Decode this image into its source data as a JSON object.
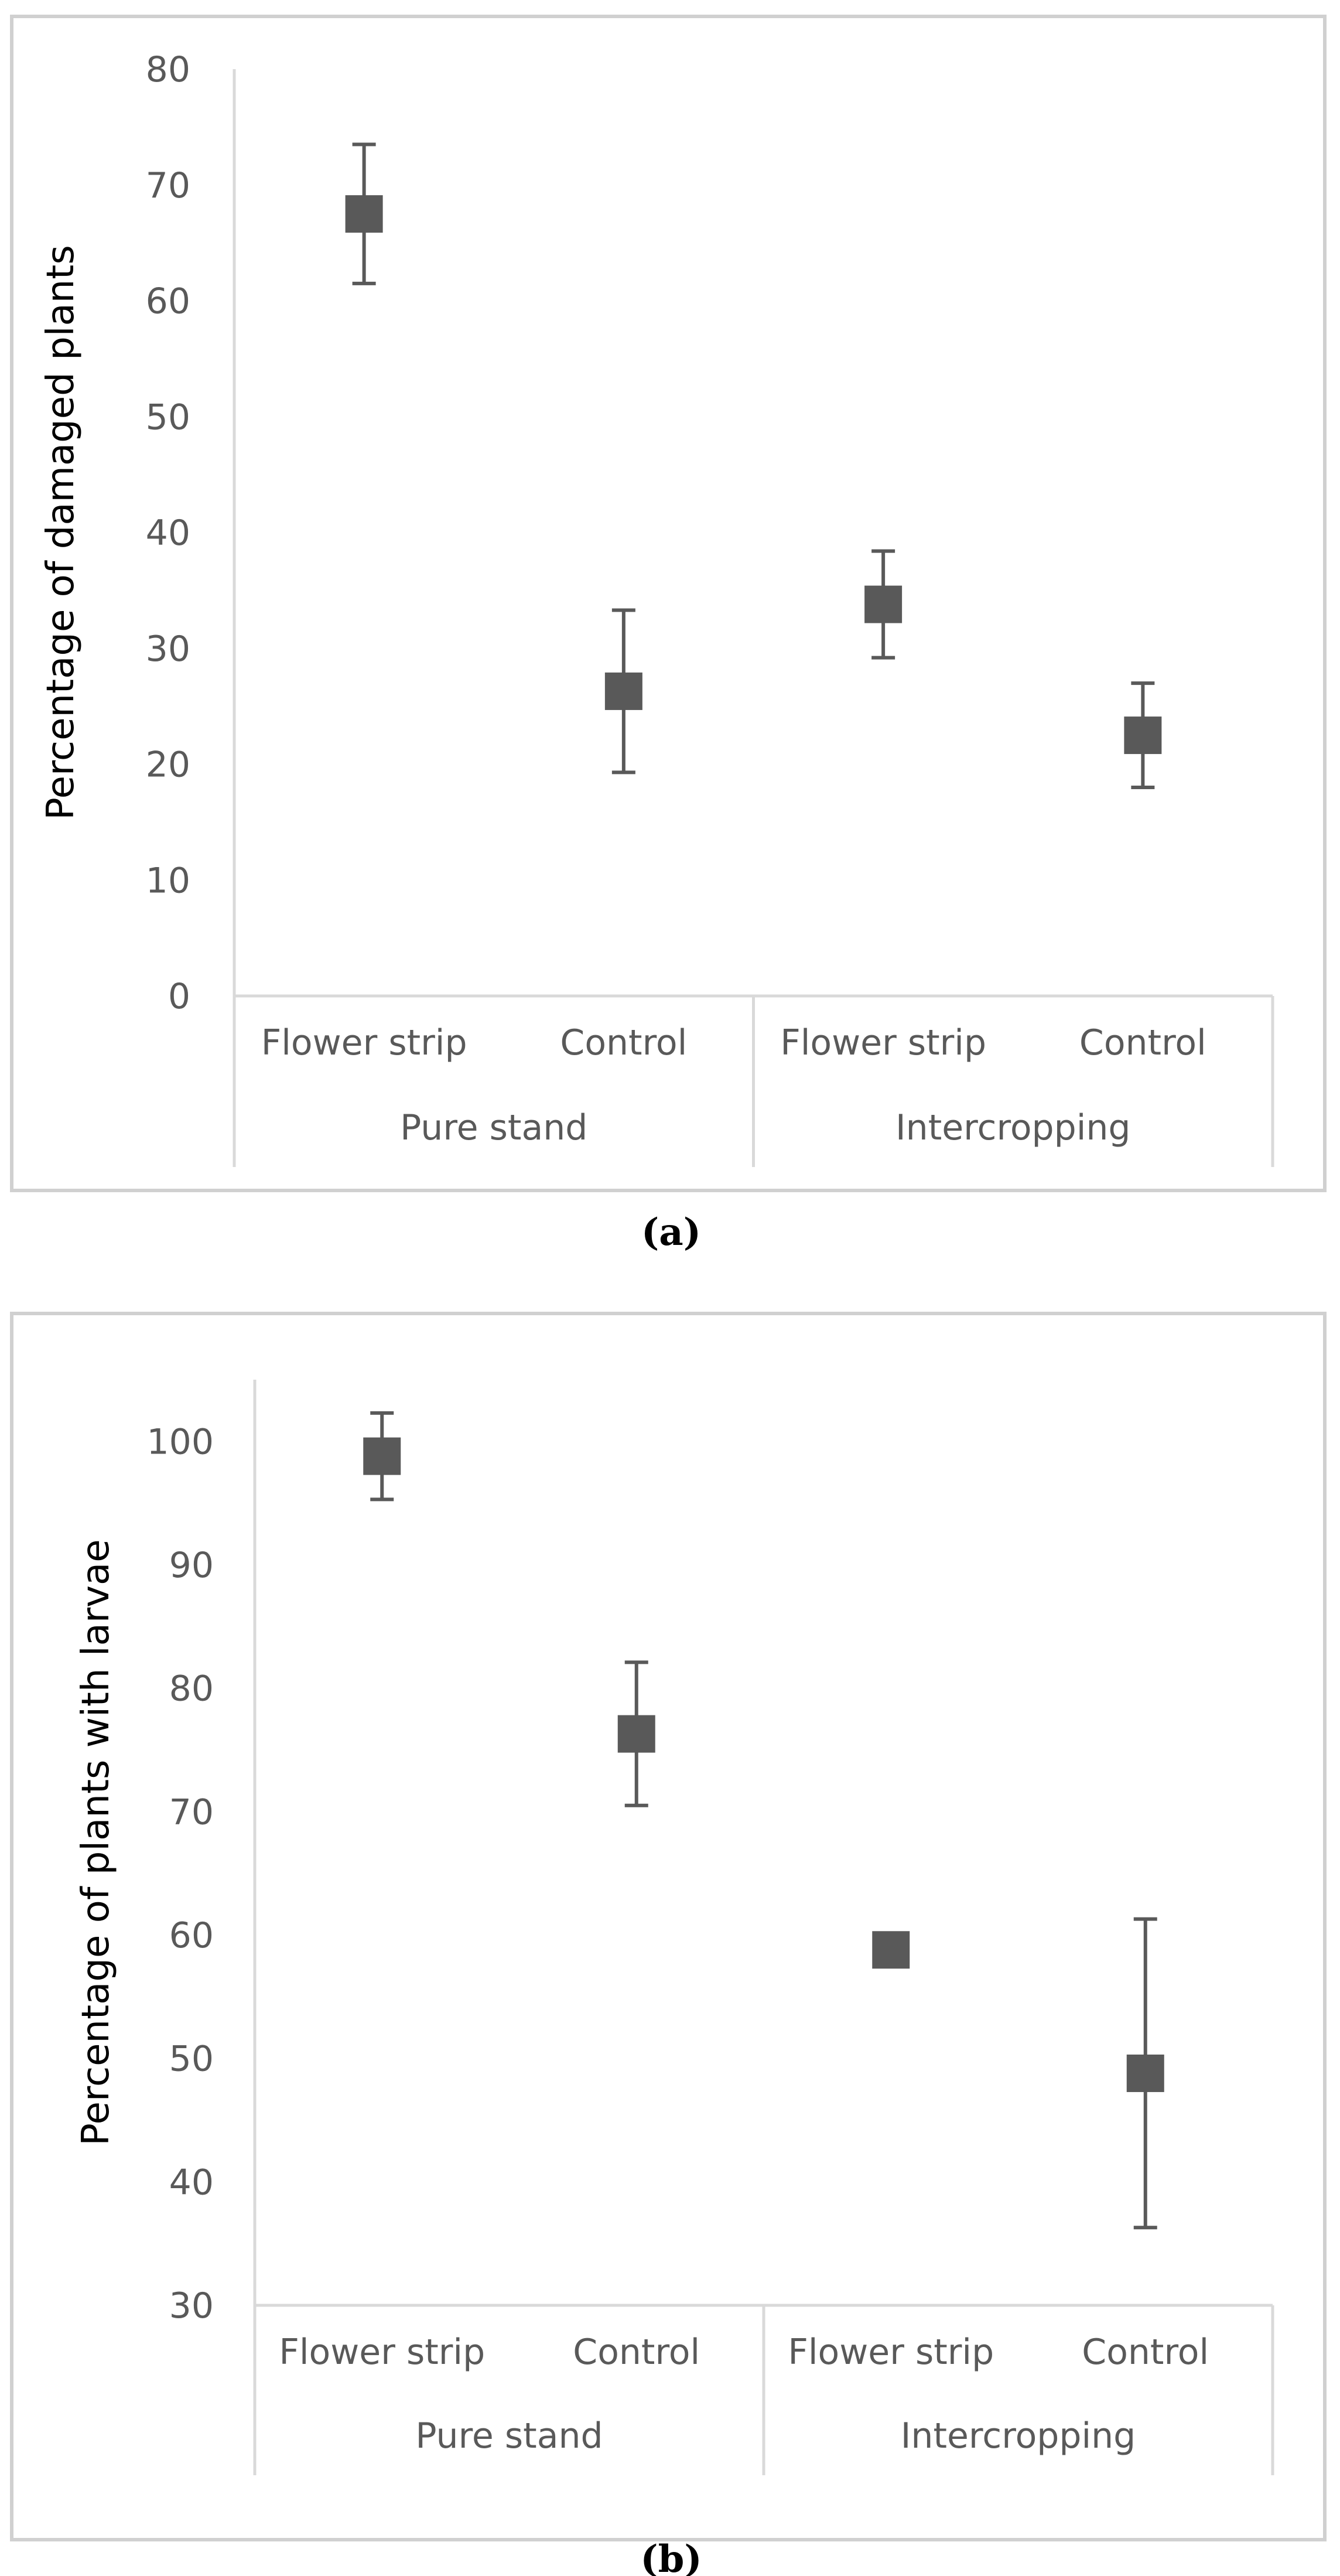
{
  "chart_data": [
    {
      "type": "scatter",
      "panel": "(a)",
      "caption": "(a)",
      "ylabel": "Percentage of damaged plants",
      "ylim": [
        0,
        80
      ],
      "yticks": [
        0,
        10,
        20,
        30,
        40,
        50,
        60,
        70,
        80
      ],
      "groups": [
        {
          "name": "Pure stand",
          "categories": [
            "Flower strip",
            "Control"
          ]
        },
        {
          "name": "Intercropping",
          "categories": [
            "Flower strip",
            "Control"
          ]
        }
      ],
      "values": [
        67.5,
        26.3,
        33.8,
        22.5
      ],
      "error_upper": [
        73.5,
        33.3,
        38.4,
        27.0
      ],
      "error_lower": [
        61.5,
        19.3,
        29.2,
        18.0
      ],
      "color": "#595959"
    },
    {
      "type": "scatter",
      "panel": "(b)",
      "caption": "(b)",
      "ylabel": "Percentage of plants with larvae",
      "ylim": [
        30,
        105
      ],
      "yticks": [
        30,
        40,
        50,
        60,
        70,
        80,
        90,
        100
      ],
      "groups": [
        {
          "name": "Pure stand",
          "categories": [
            "Flower strip",
            "Control"
          ]
        },
        {
          "name": "Intercropping",
          "categories": [
            "Flower strip",
            "Control"
          ]
        }
      ],
      "values": [
        98.8,
        76.3,
        58.8,
        48.8
      ],
      "error_upper": [
        102.3,
        82.1,
        58.8,
        61.3
      ],
      "error_lower": [
        95.3,
        70.5,
        58.8,
        36.3
      ],
      "color": "#595959"
    }
  ]
}
